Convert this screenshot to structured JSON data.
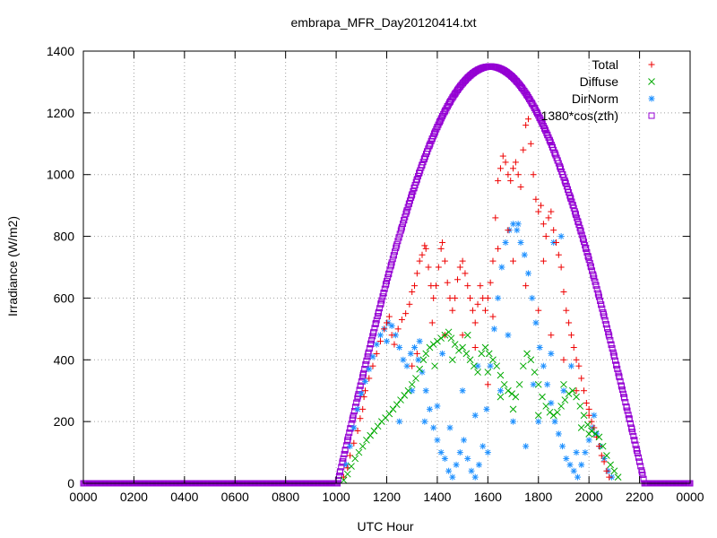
{
  "chart_data": {
    "type": "scatter",
    "title": "embrapa_MFR_Day20120414.txt",
    "xlabel": "UTC Hour",
    "ylabel": "Irradiance (W/m2)",
    "xlim": [
      0,
      24
    ],
    "ylim": [
      0,
      1400
    ],
    "grid": true,
    "legend_position": "top-right",
    "x_tick_values": [
      0,
      2,
      4,
      6,
      8,
      10,
      12,
      14,
      16,
      18,
      20,
      22,
      24
    ],
    "x_tick_labels": [
      "0000",
      "0200",
      "0400",
      "0600",
      "0800",
      "1000",
      "1200",
      "1400",
      "1600",
      "1800",
      "2000",
      "2200",
      "0000"
    ],
    "y_ticks": [
      0,
      200,
      400,
      600,
      800,
      1000,
      1200,
      1400
    ],
    "series": [
      {
        "name": "Total",
        "marker": "plus",
        "color": "#ee0000",
        "points": [
          [
            10.3,
            20
          ],
          [
            10.45,
            50
          ],
          [
            10.55,
            90
          ],
          [
            10.7,
            130
          ],
          [
            10.85,
            170
          ],
          [
            10.95,
            210
          ],
          [
            11.05,
            240
          ],
          [
            11.1,
            280
          ],
          [
            11.15,
            300
          ],
          [
            11.3,
            340
          ],
          [
            11.45,
            380
          ],
          [
            11.6,
            420
          ],
          [
            11.75,
            460
          ],
          [
            11.9,
            500
          ],
          [
            12.0,
            520
          ],
          [
            12.1,
            540
          ],
          [
            12.2,
            480
          ],
          [
            12.3,
            450
          ],
          [
            12.45,
            500
          ],
          [
            12.6,
            530
          ],
          [
            12.75,
            550
          ],
          [
            12.9,
            580
          ],
          [
            13.0,
            620
          ],
          [
            13.1,
            640
          ],
          [
            13.2,
            680
          ],
          [
            13.3,
            720
          ],
          [
            13.4,
            740
          ],
          [
            13.5,
            770
          ],
          [
            13.55,
            760
          ],
          [
            13.65,
            700
          ],
          [
            13.75,
            640
          ],
          [
            13.85,
            600
          ],
          [
            13.95,
            640
          ],
          [
            14.05,
            700
          ],
          [
            14.15,
            760
          ],
          [
            14.2,
            780
          ],
          [
            14.3,
            720
          ],
          [
            14.4,
            650
          ],
          [
            14.5,
            600
          ],
          [
            14.6,
            560
          ],
          [
            14.7,
            600
          ],
          [
            14.8,
            660
          ],
          [
            14.9,
            700
          ],
          [
            15.0,
            720
          ],
          [
            15.1,
            680
          ],
          [
            15.2,
            640
          ],
          [
            15.3,
            600
          ],
          [
            15.4,
            560
          ],
          [
            15.5,
            520
          ],
          [
            15.6,
            580
          ],
          [
            15.7,
            640
          ],
          [
            15.8,
            600
          ],
          [
            15.9,
            560
          ],
          [
            16.0,
            600
          ],
          [
            16.1,
            650
          ],
          [
            16.2,
            720
          ],
          [
            16.3,
            860
          ],
          [
            16.4,
            980
          ],
          [
            16.5,
            1020
          ],
          [
            16.6,
            1060
          ],
          [
            16.7,
            1040
          ],
          [
            16.8,
            1000
          ],
          [
            16.9,
            980
          ],
          [
            17.0,
            1020
          ],
          [
            17.1,
            1040
          ],
          [
            17.2,
            1000
          ],
          [
            17.3,
            960
          ],
          [
            17.4,
            1080
          ],
          [
            17.5,
            1160
          ],
          [
            17.6,
            1180
          ],
          [
            17.7,
            1100
          ],
          [
            17.8,
            1000
          ],
          [
            17.9,
            920
          ],
          [
            18.0,
            880
          ],
          [
            18.1,
            900
          ],
          [
            18.2,
            840
          ],
          [
            18.3,
            800
          ],
          [
            18.4,
            860
          ],
          [
            18.5,
            880
          ],
          [
            18.6,
            820
          ],
          [
            18.7,
            780
          ],
          [
            18.8,
            740
          ],
          [
            18.9,
            700
          ],
          [
            19.0,
            620
          ],
          [
            19.1,
            560
          ],
          [
            19.2,
            520
          ],
          [
            19.3,
            480
          ],
          [
            19.4,
            440
          ],
          [
            19.5,
            400
          ],
          [
            19.6,
            380
          ],
          [
            19.7,
            340
          ],
          [
            19.8,
            300
          ],
          [
            19.9,
            260
          ],
          [
            20.0,
            220
          ],
          [
            20.1,
            200
          ],
          [
            20.2,
            180
          ],
          [
            20.3,
            150
          ],
          [
            20.4,
            120
          ],
          [
            20.5,
            90
          ],
          [
            20.6,
            70
          ],
          [
            20.7,
            40
          ],
          [
            20.8,
            20
          ],
          [
            13.0,
            380
          ],
          [
            13.2,
            420
          ],
          [
            13.8,
            520
          ],
          [
            14.3,
            480
          ],
          [
            15.0,
            480
          ],
          [
            15.5,
            440
          ],
          [
            16.0,
            320
          ],
          [
            16.4,
            760
          ],
          [
            17.0,
            720
          ],
          [
            17.5,
            640
          ],
          [
            18.0,
            560
          ],
          [
            18.5,
            480
          ],
          [
            19.0,
            400
          ],
          [
            19.5,
            300
          ],
          [
            20.0,
            240
          ],
          [
            16.2,
            540
          ],
          [
            16.8,
            820
          ],
          [
            18.2,
            720
          ]
        ]
      },
      {
        "name": "Diffuse",
        "marker": "cross",
        "color": "#00aa00",
        "points": [
          [
            10.3,
            10
          ],
          [
            10.45,
            30
          ],
          [
            10.6,
            55
          ],
          [
            10.75,
            80
          ],
          [
            10.9,
            100
          ],
          [
            11.05,
            120
          ],
          [
            11.2,
            140
          ],
          [
            11.35,
            155
          ],
          [
            11.5,
            170
          ],
          [
            11.65,
            185
          ],
          [
            11.8,
            200
          ],
          [
            11.95,
            212
          ],
          [
            12.1,
            225
          ],
          [
            12.25,
            240
          ],
          [
            12.4,
            255
          ],
          [
            12.55,
            270
          ],
          [
            12.7,
            285
          ],
          [
            12.85,
            300
          ],
          [
            13.0,
            320
          ],
          [
            13.15,
            340
          ],
          [
            13.3,
            370
          ],
          [
            13.45,
            400
          ],
          [
            13.55,
            420
          ],
          [
            13.7,
            440
          ],
          [
            13.85,
            450
          ],
          [
            14.0,
            460
          ],
          [
            14.15,
            470
          ],
          [
            14.3,
            480
          ],
          [
            14.45,
            490
          ],
          [
            14.55,
            470
          ],
          [
            14.7,
            450
          ],
          [
            14.85,
            430
          ],
          [
            15.0,
            440
          ],
          [
            15.15,
            420
          ],
          [
            15.3,
            400
          ],
          [
            15.45,
            380
          ],
          [
            15.6,
            360
          ],
          [
            15.75,
            420
          ],
          [
            15.9,
            440
          ],
          [
            16.05,
            420
          ],
          [
            16.2,
            400
          ],
          [
            16.35,
            380
          ],
          [
            16.5,
            350
          ],
          [
            16.65,
            320
          ],
          [
            16.8,
            300
          ],
          [
            16.95,
            290
          ],
          [
            17.1,
            280
          ],
          [
            17.25,
            320
          ],
          [
            17.4,
            380
          ],
          [
            17.55,
            420
          ],
          [
            17.7,
            400
          ],
          [
            17.85,
            360
          ],
          [
            18.0,
            320
          ],
          [
            18.15,
            280
          ],
          [
            18.3,
            250
          ],
          [
            18.45,
            230
          ],
          [
            18.6,
            220
          ],
          [
            18.75,
            230
          ],
          [
            18.9,
            250
          ],
          [
            19.05,
            270
          ],
          [
            19.2,
            290
          ],
          [
            19.35,
            300
          ],
          [
            19.5,
            280
          ],
          [
            19.65,
            250
          ],
          [
            19.8,
            220
          ],
          [
            19.95,
            190
          ],
          [
            20.1,
            170
          ],
          [
            20.25,
            160
          ],
          [
            20.4,
            150
          ],
          [
            20.55,
            120
          ],
          [
            20.7,
            90
          ],
          [
            20.85,
            60
          ],
          [
            21.0,
            40
          ],
          [
            21.15,
            20
          ],
          [
            13.9,
            380
          ],
          [
            14.6,
            400
          ],
          [
            15.2,
            480
          ],
          [
            16.0,
            360
          ],
          [
            17.0,
            240
          ],
          [
            18.0,
            220
          ],
          [
            19.0,
            320
          ],
          [
            19.7,
            180
          ],
          [
            20.0,
            160
          ],
          [
            16.5,
            280
          ]
        ]
      },
      {
        "name": "DirNorm",
        "marker": "star",
        "color": "#1e90ff",
        "points": [
          [
            10.4,
            60
          ],
          [
            10.55,
            120
          ],
          [
            10.7,
            180
          ],
          [
            10.85,
            240
          ],
          [
            11.0,
            290
          ],
          [
            11.15,
            330
          ],
          [
            11.3,
            370
          ],
          [
            11.45,
            410
          ],
          [
            11.6,
            450
          ],
          [
            11.75,
            480
          ],
          [
            11.9,
            500
          ],
          [
            12.05,
            520
          ],
          [
            12.2,
            510
          ],
          [
            12.35,
            480
          ],
          [
            12.5,
            440
          ],
          [
            12.65,
            400
          ],
          [
            12.8,
            380
          ],
          [
            12.95,
            420
          ],
          [
            13.1,
            440
          ],
          [
            13.25,
            400
          ],
          [
            13.4,
            360
          ],
          [
            13.55,
            300
          ],
          [
            13.7,
            240
          ],
          [
            13.85,
            180
          ],
          [
            14.0,
            140
          ],
          [
            14.15,
            100
          ],
          [
            14.3,
            80
          ],
          [
            14.45,
            40
          ],
          [
            14.6,
            20
          ],
          [
            14.75,
            60
          ],
          [
            14.9,
            100
          ],
          [
            15.05,
            140
          ],
          [
            15.2,
            80
          ],
          [
            15.35,
            40
          ],
          [
            15.5,
            20
          ],
          [
            15.65,
            60
          ],
          [
            15.8,
            120
          ],
          [
            15.95,
            240
          ],
          [
            16.1,
            380
          ],
          [
            16.25,
            500
          ],
          [
            16.4,
            600
          ],
          [
            16.55,
            700
          ],
          [
            16.7,
            780
          ],
          [
            16.85,
            820
          ],
          [
            17.0,
            840
          ],
          [
            17.15,
            820
          ],
          [
            17.3,
            780
          ],
          [
            17.45,
            740
          ],
          [
            17.6,
            680
          ],
          [
            17.75,
            600
          ],
          [
            17.9,
            520
          ],
          [
            18.05,
            440
          ],
          [
            18.2,
            380
          ],
          [
            18.35,
            320
          ],
          [
            18.5,
            260
          ],
          [
            18.65,
            200
          ],
          [
            18.8,
            160
          ],
          [
            18.95,
            120
          ],
          [
            19.1,
            80
          ],
          [
            19.25,
            60
          ],
          [
            19.4,
            40
          ],
          [
            19.55,
            20
          ],
          [
            19.7,
            60
          ],
          [
            19.85,
            100
          ],
          [
            20.0,
            140
          ],
          [
            20.15,
            180
          ],
          [
            20.3,
            160
          ],
          [
            20.45,
            120
          ],
          [
            20.6,
            80
          ],
          [
            20.75,
            40
          ],
          [
            20.9,
            20
          ],
          [
            12.5,
            200
          ],
          [
            13.0,
            300
          ],
          [
            13.5,
            200
          ],
          [
            14.0,
            250
          ],
          [
            14.5,
            180
          ],
          [
            15.0,
            300
          ],
          [
            15.5,
            220
          ],
          [
            16.0,
            100
          ],
          [
            16.5,
            300
          ],
          [
            17.0,
            200
          ],
          [
            17.5,
            120
          ],
          [
            18.0,
            200
          ],
          [
            18.5,
            420
          ],
          [
            19.0,
            300
          ],
          [
            19.5,
            100
          ],
          [
            18.9,
            800
          ],
          [
            18.6,
            780
          ],
          [
            17.2,
            840
          ],
          [
            12.0,
            460
          ],
          [
            13.3,
            460
          ],
          [
            14.2,
            420
          ],
          [
            15.6,
            380
          ],
          [
            16.8,
            480
          ],
          [
            17.8,
            320
          ],
          [
            19.3,
            380
          ],
          [
            20.2,
            220
          ]
        ]
      },
      {
        "name": "1380*cos(zth)",
        "marker": "square",
        "color": "#9400d3",
        "model": "clear_sky_curve",
        "sunrise": 10.05,
        "sunset": 22.2,
        "noon": 16.1,
        "peak": 1350
      }
    ]
  }
}
